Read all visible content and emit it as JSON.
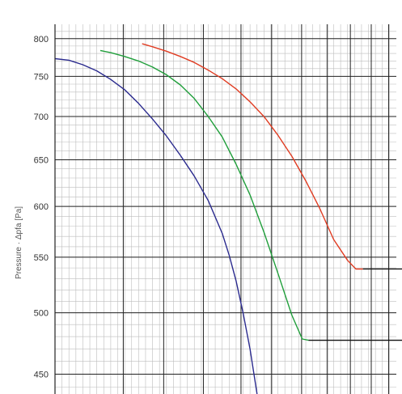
{
  "chart_data": {
    "type": "line",
    "title": "",
    "ylabel": "Pressure · Δpfa [Pa]",
    "xlabel": "",
    "y_scale": "log",
    "ylim": [
      435,
      820
    ],
    "xlim": [
      0,
      49
    ],
    "y_ticks": [
      450,
      500,
      550,
      600,
      650,
      700,
      750,
      800
    ],
    "x_major_ticks": [
      9.8,
      15.6,
      21.3,
      26.7,
      31.1,
      35.4,
      39.1,
      42.4,
      45.4,
      47.9
    ],
    "grid": true,
    "legend": "none",
    "series": [
      {
        "color": "#2a2a8e",
        "x": [
          0,
          2,
          4,
          6,
          8,
          10,
          12,
          14,
          16,
          18,
          20,
          22,
          24,
          25,
          26,
          27,
          28,
          29
        ],
        "y": [
          773,
          771,
          765,
          757,
          746,
          733,
          716,
          697,
          677,
          655,
          632,
          606,
          573,
          552,
          528,
          500,
          470,
          435
        ]
      },
      {
        "color": "#1f9e3a",
        "x": [
          6.5,
          8,
          10,
          12,
          14,
          16,
          18,
          20,
          22,
          24,
          26,
          28,
          30,
          32,
          34,
          35.5,
          36.4,
          49
        ],
        "y": [
          784,
          781,
          776,
          770,
          762,
          752,
          739,
          722,
          700,
          676,
          645,
          612,
          574,
          535,
          498,
          478,
          477,
          477
        ]
      },
      {
        "color": "#e03c22",
        "x": [
          12.5,
          14,
          16,
          18,
          20,
          22,
          24,
          26,
          28,
          30,
          32,
          34,
          36,
          38,
          40,
          42,
          43.2,
          44.2,
          49
        ],
        "y": [
          793,
          789,
          783,
          776,
          768,
          758,
          747,
          734,
          718,
          700,
          678,
          654,
          627,
          598,
          567,
          547,
          539,
          539,
          539
        ]
      }
    ]
  }
}
